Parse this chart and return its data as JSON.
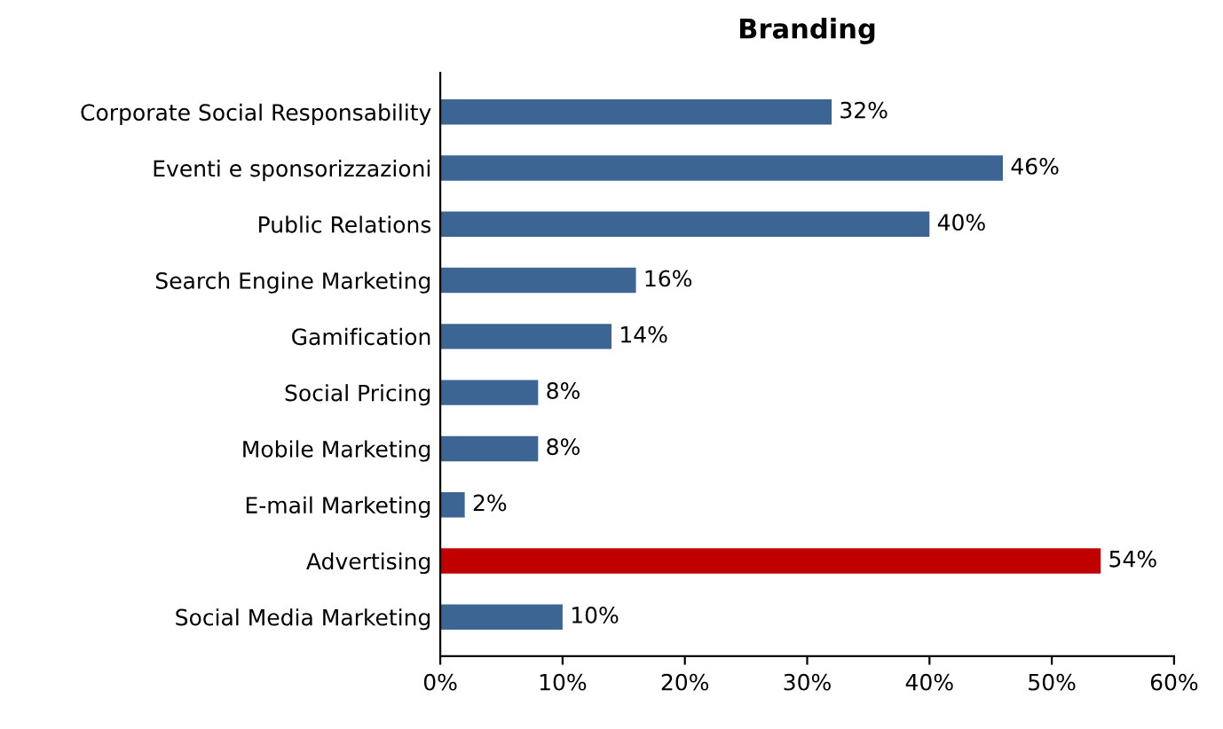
{
  "chart_data": {
    "type": "bar",
    "orientation": "horizontal",
    "title": "Branding",
    "categories": [
      "Corporate Social Responsability",
      "Eventi e sponsorizzazioni",
      "Public Relations",
      "Search Engine Marketing",
      "Gamification",
      "Social Pricing",
      "Mobile Marketing",
      "E-mail Marketing",
      "Advertising",
      "Social Media Marketing"
    ],
    "values": [
      32,
      46,
      40,
      16,
      14,
      8,
      8,
      2,
      54,
      10
    ],
    "colors": [
      "#3c6594",
      "#3c6594",
      "#3c6594",
      "#3c6594",
      "#3c6594",
      "#3c6594",
      "#3c6594",
      "#3c6594",
      "#c00000",
      "#3c6594"
    ],
    "value_labels": [
      "32%",
      "46%",
      "40%",
      "16%",
      "14%",
      "8%",
      "8%",
      "2%",
      "54%",
      "10%"
    ],
    "xlim": [
      0,
      60
    ],
    "xticks": [
      {
        "value": 0,
        "label": "0%"
      },
      {
        "value": 10,
        "label": "10%"
      },
      {
        "value": 20,
        "label": "20%"
      },
      {
        "value": 30,
        "label": "30%"
      },
      {
        "value": 40,
        "label": "40%"
      },
      {
        "value": 50,
        "label": "50%"
      },
      {
        "value": 60,
        "label": "60%"
      }
    ],
    "grid": false,
    "legend": false
  }
}
